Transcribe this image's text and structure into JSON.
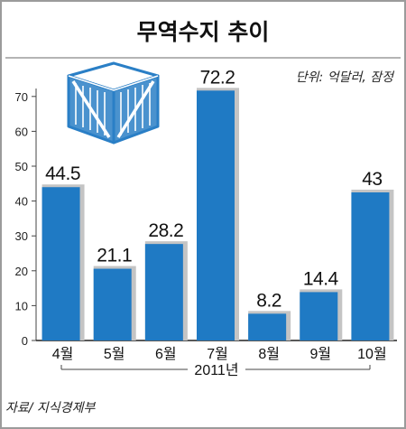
{
  "chart_data": {
    "type": "bar",
    "title": "무역수지 추이",
    "unit_label": "단위: 억달러, 잠정",
    "categories": [
      "4월",
      "5월",
      "6월",
      "7월",
      "8월",
      "9월",
      "10월"
    ],
    "values": [
      44.5,
      21.1,
      28.2,
      72.2,
      8.2,
      14.4,
      43
    ],
    "value_labels": [
      "44.5",
      "21.1",
      "28.2",
      "72.2",
      "8.2",
      "14.4",
      "43"
    ],
    "y_ticks": [
      0,
      10,
      20,
      30,
      40,
      50,
      60,
      70
    ],
    "ylim": [
      0,
      80
    ],
    "x_group_label": "2011년",
    "source": "자료/ 지식경제부",
    "grid": false,
    "colors": {
      "bar": "#1f7ac4",
      "bar_shadow": "#c4c4c4",
      "background": "#ffffff",
      "frame": "#9b9b9b",
      "box_icon": "#2a7fc6"
    },
    "icon": "wooden-crate-icon"
  }
}
